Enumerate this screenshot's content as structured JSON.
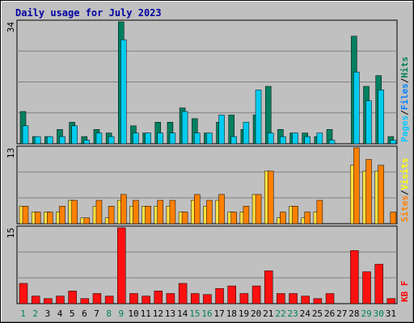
{
  "chart_data": {
    "title": "Daily usage for July 2023",
    "type": "bar",
    "categories": [
      "1",
      "2",
      "3",
      "4",
      "5",
      "6",
      "7",
      "8",
      "9",
      "10",
      "11",
      "12",
      "13",
      "14",
      "15",
      "16",
      "17",
      "18",
      "19",
      "20",
      "21",
      "22",
      "23",
      "24",
      "25",
      "26",
      "27",
      "28",
      "29",
      "30",
      "31"
    ],
    "weekend_days": [
      "1",
      "2",
      "8",
      "9",
      "15",
      "16",
      "22",
      "23",
      "29",
      "30"
    ],
    "panels": [
      {
        "id": "traffic",
        "ymax_label": "34",
        "ymax": 34,
        "axis_labels": [
          {
            "text": "Pages",
            "color": "#00c8ff"
          },
          {
            "text": "/",
            "color": "#000000"
          },
          {
            "text": "Files",
            "color": "#0080ff"
          },
          {
            "text": "/",
            "color": "#000000"
          },
          {
            "text": "Hits",
            "color": "#00805a"
          }
        ],
        "series": [
          {
            "name": "Hits",
            "color": "#008060",
            "values": [
              9,
              2,
              2,
              4,
              6,
              2,
              4,
              3,
              34,
              5,
              3,
              6,
              6,
              10,
              7,
              3,
              6,
              8,
              4,
              8,
              16,
              4,
              3,
              3,
              2,
              4,
              0,
              30,
              16,
              19,
              2
            ]
          },
          {
            "name": "Files",
            "color": "#00ccee",
            "values": [
              5,
              2,
              2,
              2,
              5,
              1,
              3,
              2,
              29,
              3,
              3,
              3,
              3,
              9,
              3,
              3,
              8,
              2,
              6,
              15,
              3,
              2,
              3,
              2,
              3,
              1,
              0,
              20,
              12,
              15,
              1
            ]
          },
          {
            "name": "Pages",
            "color": "#0080ff",
            "values": [
              0,
              0,
              0,
              0,
              0,
              0,
              0,
              0,
              0,
              0,
              0,
              0,
              0,
              0,
              0,
              0,
              0,
              0,
              0,
              0,
              0,
              0,
              0,
              0,
              0,
              0,
              0,
              0,
              0,
              0,
              0
            ]
          }
        ]
      },
      {
        "id": "visits",
        "ymax_label": "13",
        "ymax": 13,
        "axis_labels": [
          {
            "text": "Sites",
            "color": "#ff8000"
          },
          {
            "text": "/",
            "color": "#000000"
          },
          {
            "text": "Visits",
            "color": "#ffff00"
          }
        ],
        "series": [
          {
            "name": "Visits",
            "color": "#ffe040",
            "values": [
              3,
              2,
              2,
              2,
              4,
              1,
              3,
              1,
              4,
              3,
              3,
              3,
              3,
              2,
              4,
              3,
              4,
              2,
              2,
              5,
              9,
              1,
              3,
              1,
              2,
              0,
              0,
              10,
              9,
              9,
              0
            ]
          },
          {
            "name": "Sites",
            "color": "#ff8000",
            "values": [
              3,
              2,
              2,
              3,
              4,
              1,
              4,
              3,
              5,
              4,
              3,
              4,
              4,
              2,
              5,
              4,
              5,
              2,
              3,
              5,
              9,
              2,
              3,
              2,
              4,
              0,
              0,
              13,
              11,
              10,
              2
            ]
          }
        ]
      },
      {
        "id": "kbytes",
        "ymax_label": "15",
        "ymax": 15,
        "axis_labels": [
          {
            "text": "KB F",
            "color": "#ff0000"
          }
        ],
        "series": [
          {
            "name": "KB F",
            "color": "#ff1010",
            "values": [
              4,
              1.5,
              1,
              1.5,
              2.5,
              1,
              2,
              1.5,
              15,
              2,
              1.5,
              2.5,
              2,
              4,
              2,
              1.8,
              3,
              3.5,
              2,
              3.5,
              6.5,
              2,
              2,
              1.5,
              1,
              2,
              0,
              10.5,
              6.3,
              7.8,
              1
            ]
          }
        ]
      }
    ]
  }
}
